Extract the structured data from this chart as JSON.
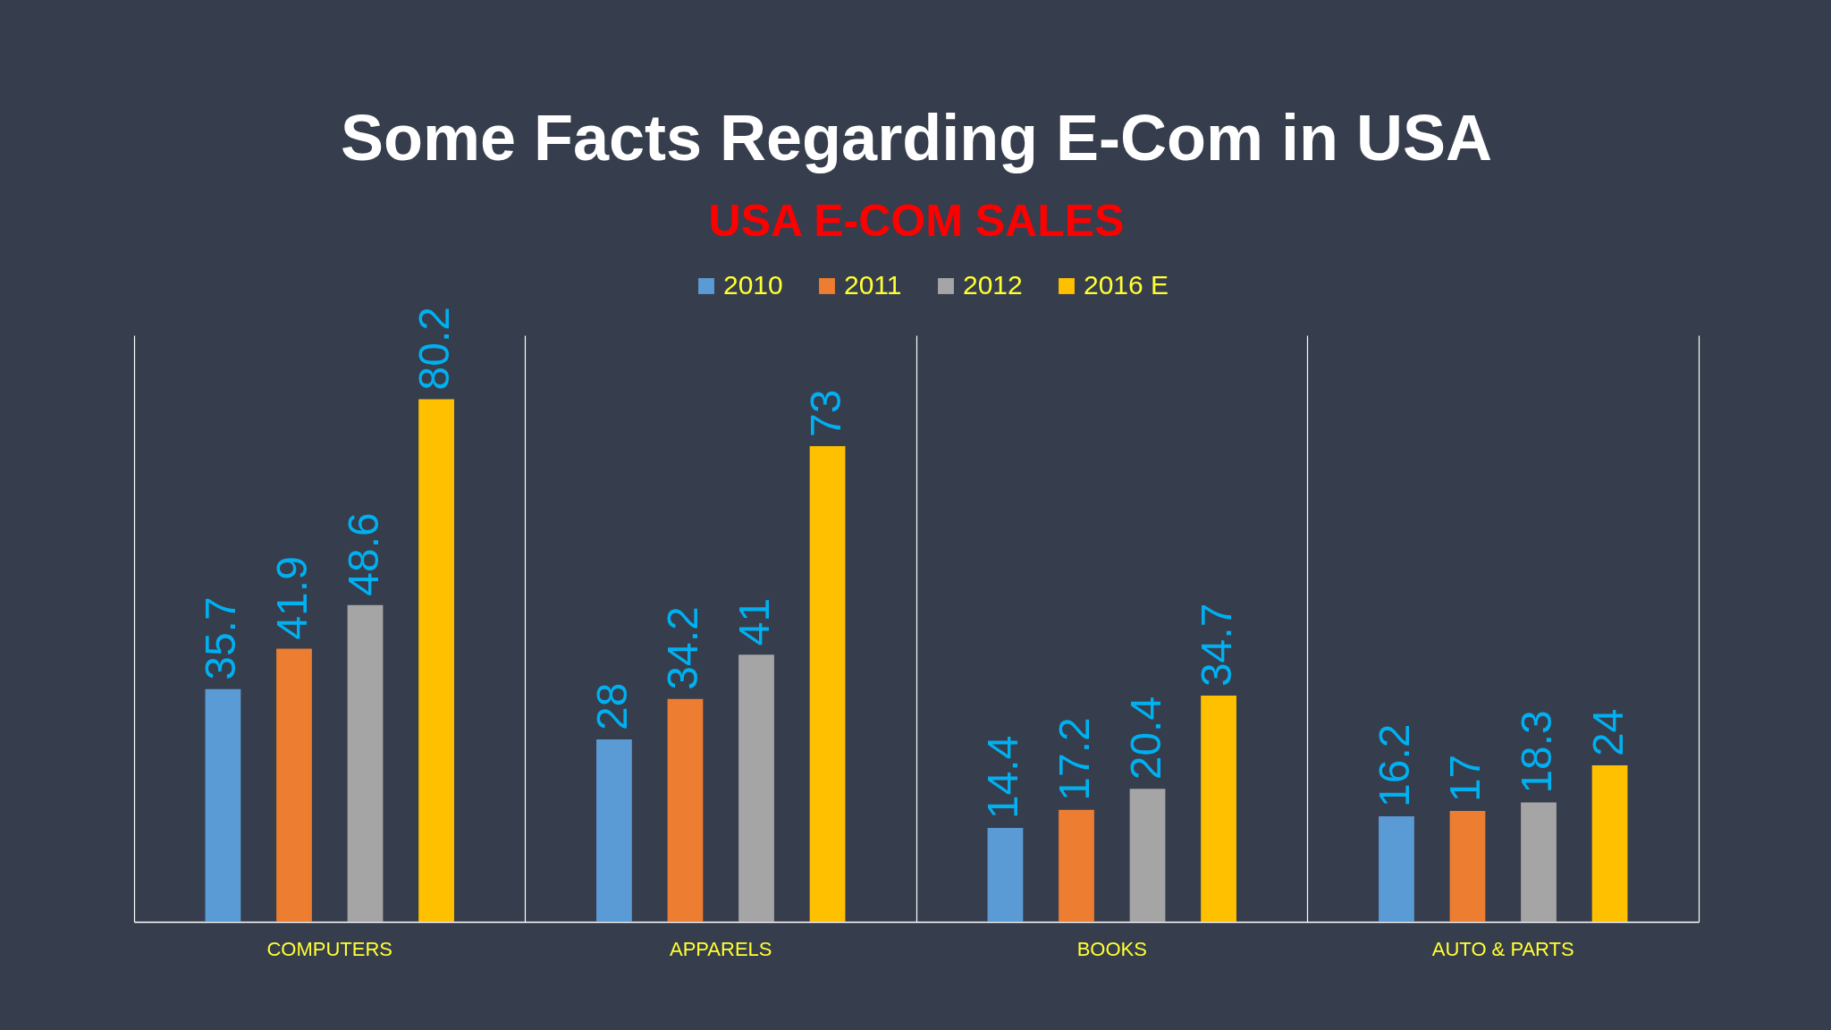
{
  "chart_data": {
    "type": "bar",
    "title": "Some Facts Regarding E-Com in USA",
    "subtitle": "USA E-COM SALES",
    "categories": [
      "COMPUTERS",
      "APPARELS",
      "BOOKS",
      "AUTO & PARTS"
    ],
    "series": [
      {
        "name": "2010",
        "color": "#5b9bd5",
        "values": [
          35.7,
          28,
          14.4,
          16.2
        ]
      },
      {
        "name": "2011",
        "color": "#ed7d31",
        "values": [
          41.9,
          34.2,
          17.2,
          17
        ]
      },
      {
        "name": "2012",
        "color": "#a5a5a5",
        "values": [
          48.6,
          41,
          20.4,
          18.3
        ]
      },
      {
        "name": "2016 E",
        "color": "#ffc000",
        "values": [
          80.2,
          73,
          34.7,
          24
        ]
      }
    ],
    "data_labels": true,
    "legend": "top",
    "grid": "x"
  }
}
